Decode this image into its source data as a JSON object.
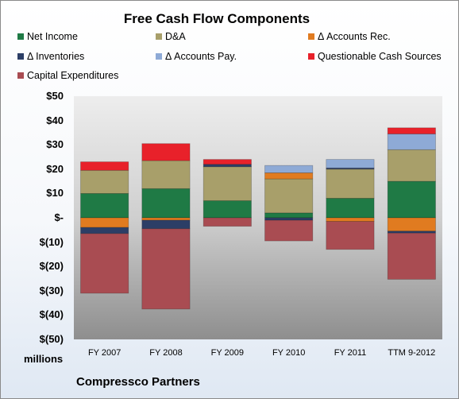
{
  "chart_data": {
    "type": "bar",
    "stacked": true,
    "title": "Free Cash Flow Components",
    "categories": [
      "FY 2007",
      "FY 2008",
      "FY 2009",
      "FY 2010",
      "FY 2011",
      "TTM 9-2012"
    ],
    "y_ticks": [
      "$50",
      "$40",
      "$30",
      "$20",
      "$10",
      "$-",
      "$(10)",
      "$(20)",
      "$(30)",
      "$(40)",
      "$(50)"
    ],
    "ylim": [
      -50,
      50
    ],
    "ylabel": "",
    "units_label": "millions",
    "footer": "Compressco Partners",
    "legend_position": "top",
    "series": [
      {
        "name": "Net Income",
        "color": "#1f7a45",
        "values": [
          10,
          12,
          7,
          2,
          8,
          15
        ]
      },
      {
        "name": "D&A",
        "color": "#a89f6a",
        "values": [
          9.5,
          11.5,
          14,
          14,
          12,
          13
        ]
      },
      {
        "name": "Δ Accounts Rec.",
        "color": "#e07b20",
        "values": [
          -4,
          -1,
          0,
          2.5,
          -1.5,
          -5.5
        ]
      },
      {
        "name": "Δ Inventories",
        "color": "#2c3e66",
        "values": [
          -2.5,
          -3.5,
          1,
          -1,
          0.5,
          -0.8
        ]
      },
      {
        "name": "Δ Accounts Pay.",
        "color": "#8eaad6",
        "values": [
          0,
          0,
          0,
          3,
          3.5,
          6.5
        ]
      },
      {
        "name": "Questionable Cash Sources",
        "color": "#e8212a",
        "values": [
          3.5,
          7,
          2,
          0,
          0,
          2.5
        ]
      },
      {
        "name": "Capital Expenditures",
        "color": "#a94c52",
        "values": [
          -24.5,
          -33,
          -3.5,
          -8.5,
          -11.5,
          -19
        ]
      }
    ]
  }
}
